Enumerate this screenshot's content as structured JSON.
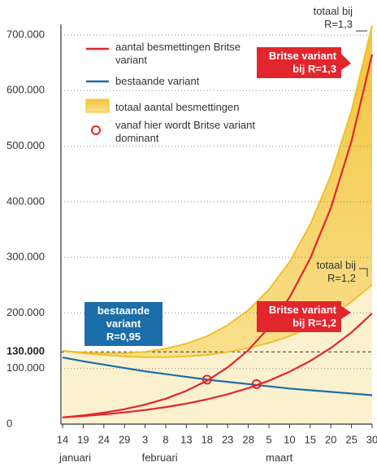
{
  "chart_data": {
    "type": "line",
    "x": [
      14,
      19,
      24,
      29,
      34,
      39,
      44,
      49,
      54,
      59,
      64,
      69,
      74,
      79,
      84,
      89
    ],
    "xlim": [
      14,
      89
    ],
    "xticks": [
      {
        "value": 14,
        "label": "14"
      },
      {
        "value": 19,
        "label": "19"
      },
      {
        "value": 24,
        "label": "24"
      },
      {
        "value": 29,
        "label": "29"
      },
      {
        "value": 34,
        "label": "3"
      },
      {
        "value": 39,
        "label": "8"
      },
      {
        "value": 44,
        "label": "13"
      },
      {
        "value": 49,
        "label": "18"
      },
      {
        "value": 54,
        "label": "23"
      },
      {
        "value": 59,
        "label": "28"
      },
      {
        "value": 64,
        "label": "5"
      },
      {
        "value": 69,
        "label": "10"
      },
      {
        "value": 74,
        "label": "15"
      },
      {
        "value": 79,
        "label": "20"
      },
      {
        "value": 84,
        "label": "25"
      },
      {
        "value": 89,
        "label": "30"
      }
    ],
    "month_labels": [
      {
        "value": 14,
        "label": "januari"
      },
      {
        "value": 34,
        "label": "februari"
      },
      {
        "value": 64,
        "label": "maart"
      }
    ],
    "ylim": [
      0,
      730000
    ],
    "yticks": [
      0,
      {
        "value": 100000,
        "label": "100.000"
      },
      {
        "value": 200000,
        "label": "200.000"
      },
      {
        "value": 300000,
        "label": "300.000"
      },
      {
        "value": 400000,
        "label": "400.000"
      },
      {
        "value": 500000,
        "label": "500.000"
      },
      {
        "value": 600000,
        "label": "600.000"
      },
      {
        "value": 700000,
        "label": "700.000"
      }
    ],
    "reference_line": {
      "value": 130000,
      "label": "130.000"
    },
    "grid": true,
    "series": [
      {
        "name": "bestaande variant R=0,95",
        "color": "#1b6ea8",
        "values": [
          120000,
          113000,
          107000,
          101000,
          95000,
          90000,
          85000,
          80000,
          76000,
          72000,
          68000,
          64000,
          61000,
          58000,
          55000,
          52000
        ]
      },
      {
        "name": "Britse variant bij R=1,3",
        "color": "#e2262d",
        "values": [
          12000,
          15700,
          20500,
          26800,
          35000,
          45700,
          59800,
          78100,
          102000,
          133000,
          174000,
          228000,
          298000,
          389000,
          509000,
          665000
        ]
      },
      {
        "name": "Britse variant bij R=1,2",
        "color": "#e2262d",
        "values": [
          12000,
          14500,
          17500,
          21100,
          25400,
          30600,
          36900,
          44500,
          53700,
          64800,
          78100,
          94200,
          113600,
          137000,
          165000,
          199000
        ]
      },
      {
        "name": "totaal bij R=1,3",
        "color": "#f0c02a",
        "fill": "#f6d262",
        "values": [
          132000,
          128700,
          127500,
          127800,
          130000,
          135700,
          144800,
          158100,
          178000,
          205000,
          242000,
          292000,
          359000,
          447000,
          564000,
          717000
        ]
      },
      {
        "name": "totaal bij R=1,2",
        "color": "#f0c02a",
        "fill": "#fcf1cf",
        "values": [
          132000,
          127500,
          124500,
          122100,
          120400,
          120600,
          121900,
          124500,
          129700,
          136800,
          146100,
          158200,
          174600,
          195000,
          220000,
          251000
        ]
      }
    ],
    "dominance_points": [
      {
        "x": 49,
        "y": 80000
      },
      {
        "x": 61,
        "y": 72000
      }
    ],
    "legend": [
      {
        "label": "aantal besmettingen Britse variant",
        "kind": "line",
        "color": "#e2262d"
      },
      {
        "label": "bestaande variant",
        "kind": "line",
        "color": "#1b6ea8"
      },
      {
        "label": "totaal aantal besmettingen",
        "kind": "area",
        "color": "#f6d262"
      },
      {
        "label": "vanaf hier wordt Britse variant dominant",
        "kind": "circle",
        "color": "#e2262d"
      }
    ]
  }
}
